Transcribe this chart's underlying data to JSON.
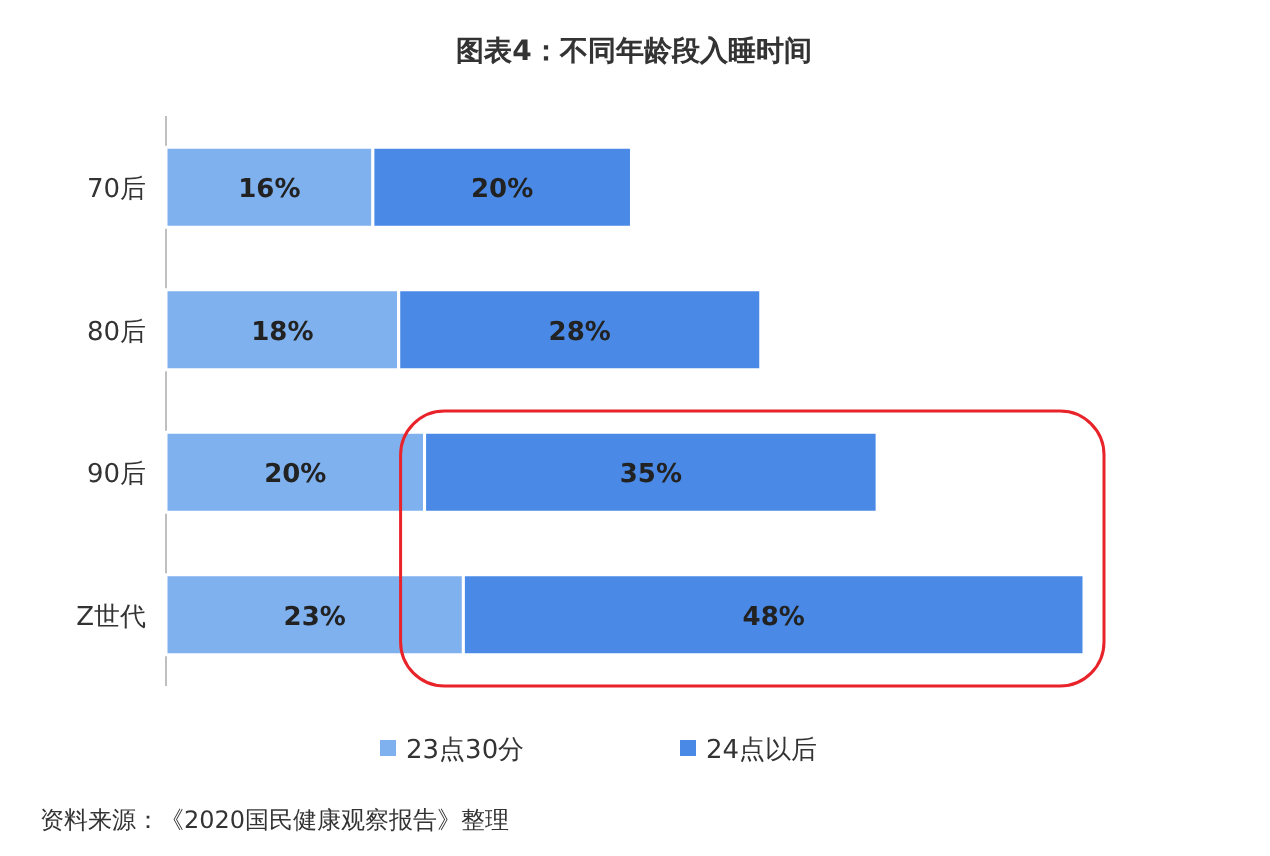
{
  "chart_data": {
    "type": "bar",
    "orientation": "horizontal",
    "stacked": true,
    "title": "图表4：不同年龄段入睡时间",
    "categories": [
      "70后",
      "80后",
      "90后",
      "Z世代"
    ],
    "series": [
      {
        "name": "23点30分",
        "color": "#7fb1ef",
        "values": [
          16,
          18,
          20,
          23
        ],
        "value_labels": [
          "16%",
          "18%",
          "20%",
          "23%"
        ]
      },
      {
        "name": "24点以后",
        "color": "#4a8ae6",
        "values": [
          20,
          28,
          35,
          48
        ],
        "value_labels": [
          "20%",
          "28%",
          "35%",
          "48%"
        ]
      }
    ],
    "tick_labels": "y",
    "legend": "bottom",
    "annotations": [
      "资料来源：《2020国民健康观察报告》整理"
    ]
  }
}
